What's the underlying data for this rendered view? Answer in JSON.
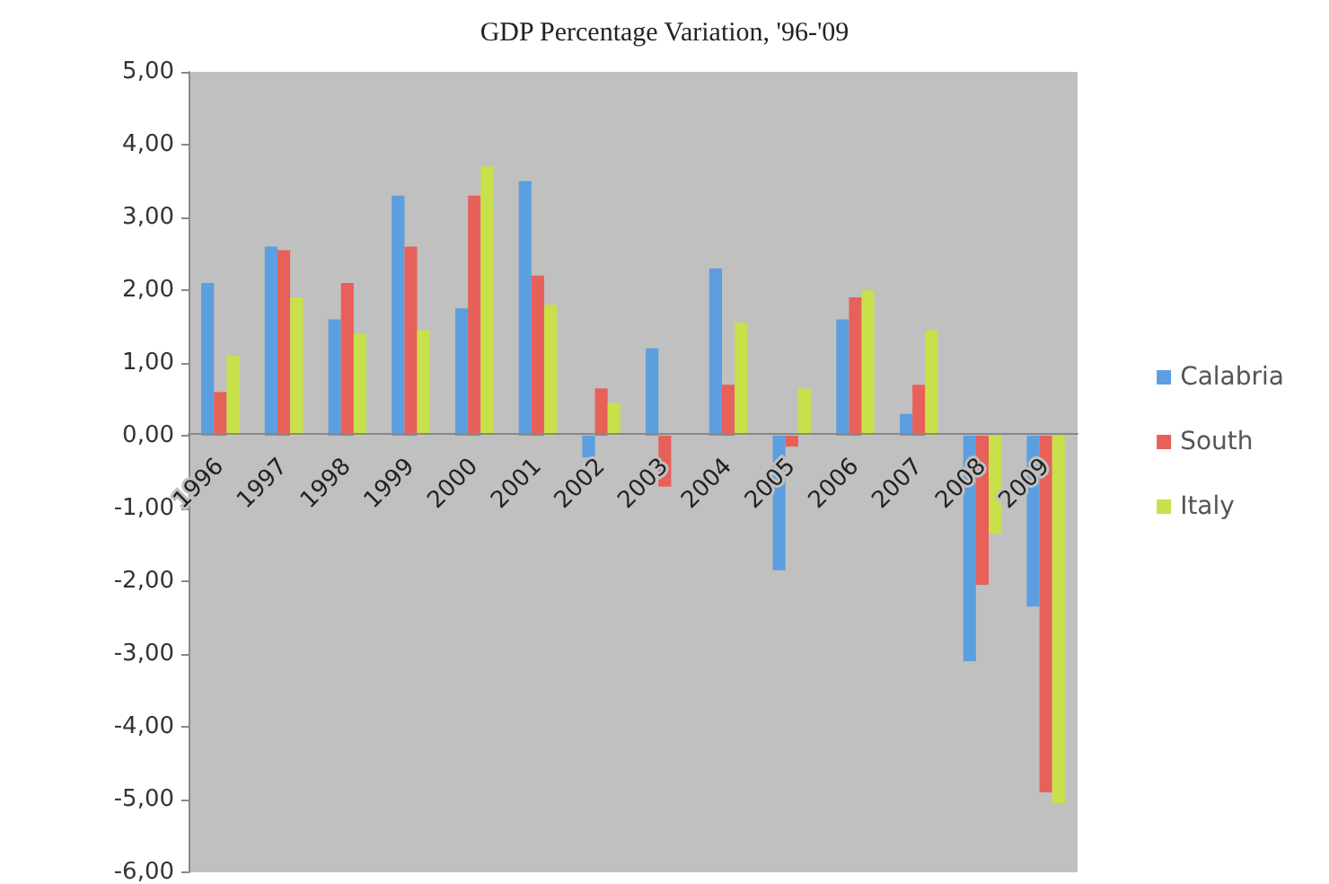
{
  "chart_data": {
    "type": "bar",
    "title": "GDP Percentage Variation, '96-'09",
    "categories": [
      "1996",
      "1997",
      "1998",
      "1999",
      "2000",
      "2001",
      "2002",
      "2003",
      "2004",
      "2005",
      "2006",
      "2007",
      "2008",
      "2009"
    ],
    "series": [
      {
        "name": "Calabria",
        "color": "#5b9fe0",
        "values": [
          2.1,
          2.6,
          1.6,
          3.3,
          1.75,
          3.5,
          -0.3,
          1.2,
          2.3,
          -1.85,
          1.6,
          0.3,
          -3.1,
          -2.35
        ]
      },
      {
        "name": "South",
        "color": "#e8605a",
        "values": [
          0.6,
          2.55,
          2.1,
          2.6,
          3.3,
          2.2,
          0.65,
          -0.7,
          0.7,
          -0.15,
          1.9,
          0.7,
          -2.05,
          -4.9
        ]
      },
      {
        "name": "Italy",
        "color": "#c8e04a",
        "values": [
          1.1,
          1.9,
          1.4,
          1.45,
          3.7,
          1.8,
          0.45,
          0,
          1.55,
          0.65,
          2.0,
          1.45,
          -1.35,
          -5.05
        ]
      }
    ],
    "ylim": [
      -6,
      5
    ],
    "yticks": [
      {
        "value": -6,
        "label": "-6,00"
      },
      {
        "value": -5,
        "label": "-5,00"
      },
      {
        "value": -4,
        "label": "-4,00"
      },
      {
        "value": -3,
        "label": "-3,00"
      },
      {
        "value": -2,
        "label": "-2,00"
      },
      {
        "value": -1,
        "label": "-1,00"
      },
      {
        "value": 0,
        "label": "0,00"
      },
      {
        "value": 1,
        "label": "1,00"
      },
      {
        "value": 2,
        "label": "2,00"
      },
      {
        "value": 3,
        "label": "3,00"
      },
      {
        "value": 4,
        "label": "4,00"
      },
      {
        "value": 5,
        "label": "5,00"
      }
    ],
    "legend": "right"
  }
}
